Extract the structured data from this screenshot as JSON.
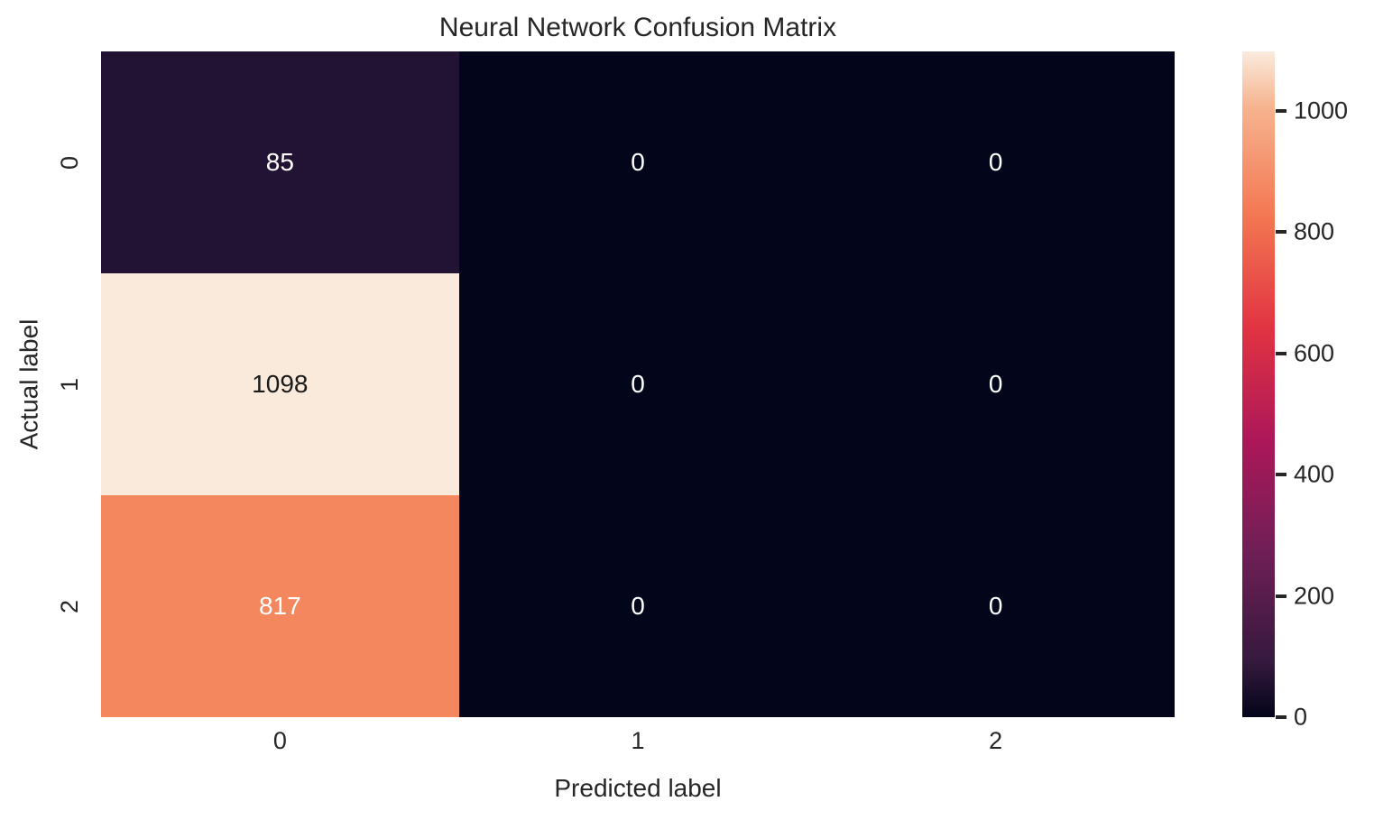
{
  "chart_data": {
    "type": "heatmap",
    "title": "Neural Network Confusion Matrix",
    "xlabel": "Predicted label",
    "ylabel": "Actual label",
    "x_tick_labels": [
      "0",
      "1",
      "2"
    ],
    "y_tick_labels": [
      "0",
      "1",
      "2"
    ],
    "matrix": [
      [
        85,
        0,
        0
      ],
      [
        1098,
        0,
        0
      ],
      [
        817,
        0,
        0
      ]
    ],
    "vmin": 0,
    "vmax": 1098,
    "colormap": "rocket",
    "legend_position": "right-colorbar",
    "grid": false,
    "cell_colors": [
      [
        "#221233",
        "#03051a",
        "#03051a"
      ],
      [
        "#faeadc",
        "#03051a",
        "#03051a"
      ],
      [
        "#f4875e",
        "#03051a",
        "#03051a"
      ]
    ],
    "cell_text_colors": [
      [
        "#ffffff",
        "#ffffff",
        "#ffffff"
      ],
      [
        "#1a1a1a",
        "#ffffff",
        "#ffffff"
      ],
      [
        "#ffffff",
        "#ffffff",
        "#ffffff"
      ]
    ],
    "colorbar_ticks": [
      0,
      200,
      400,
      600,
      800,
      1000
    ],
    "colorbar_gradient": [
      {
        "pos": 0,
        "color": "#03051a"
      },
      {
        "pos": 8.3,
        "color": "#35193e"
      },
      {
        "pos": 25,
        "color": "#701f57"
      },
      {
        "pos": 41.7,
        "color": "#ad1759"
      },
      {
        "pos": 58.3,
        "color": "#e13342"
      },
      {
        "pos": 75,
        "color": "#f37651"
      },
      {
        "pos": 91.7,
        "color": "#f6b48f"
      },
      {
        "pos": 100,
        "color": "#faebdd"
      }
    ]
  },
  "colors": {
    "background": "#ffffff",
    "text": "#262626"
  }
}
